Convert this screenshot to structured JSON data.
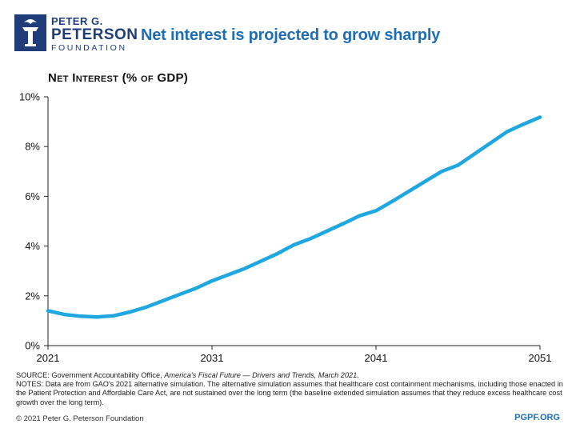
{
  "brand": {
    "line1": "PETER G.",
    "line2": "PETERSON",
    "line3": "FOUNDATION",
    "logo_icon": "torch-icon",
    "color": "#1f3d7a"
  },
  "title": "Net interest is projected to grow sharply",
  "chart_data": {
    "type": "line",
    "title": "Net Interest (% of GDP)",
    "xlabel": "",
    "ylabel": "",
    "xlim": [
      2021,
      2051
    ],
    "ylim": [
      0,
      10
    ],
    "x_ticks": [
      "2021",
      "2031",
      "2041",
      "2051"
    ],
    "y_ticks": [
      "0%",
      "2%",
      "4%",
      "6%",
      "8%",
      "10%"
    ],
    "grid": false,
    "series": [
      {
        "name": "Net interest",
        "color": "#1ea7e1",
        "x": [
          2021,
          2022,
          2023,
          2024,
          2025,
          2026,
          2027,
          2028,
          2029,
          2030,
          2031,
          2032,
          2033,
          2034,
          2035,
          2036,
          2037,
          2038,
          2039,
          2040,
          2041,
          2042,
          2043,
          2044,
          2045,
          2046,
          2047,
          2048,
          2049,
          2050,
          2051
        ],
        "values": [
          1.4,
          1.25,
          1.18,
          1.15,
          1.2,
          1.35,
          1.55,
          1.8,
          2.05,
          2.3,
          2.6,
          2.85,
          3.1,
          3.4,
          3.7,
          4.05,
          4.3,
          4.6,
          4.9,
          5.22,
          5.42,
          5.8,
          6.2,
          6.6,
          7.0,
          7.25,
          7.7,
          8.15,
          8.6,
          8.9,
          9.18
        ]
      }
    ]
  },
  "notes": {
    "source_prefix": "SOURCE: Government Accountability Office, ",
    "source_italic": "America's Fiscal Future — Drivers and Trends, March 2021",
    "source_suffix": ".",
    "notes_text": "NOTES: Data are from GAO's 2021 alternative simulation. The alternative simulation assumes that healthcare cost containment mechanisms, including those enacted in the Patient Protection and Affordable Care Act, are not sustained over the long term (the baseline extended simulation assumes that they reduce excess healthcare cost growth over the long term)."
  },
  "footer": {
    "copyright": "© 2021 Peter G. Peterson Foundation",
    "site": "PGPF.ORG"
  }
}
